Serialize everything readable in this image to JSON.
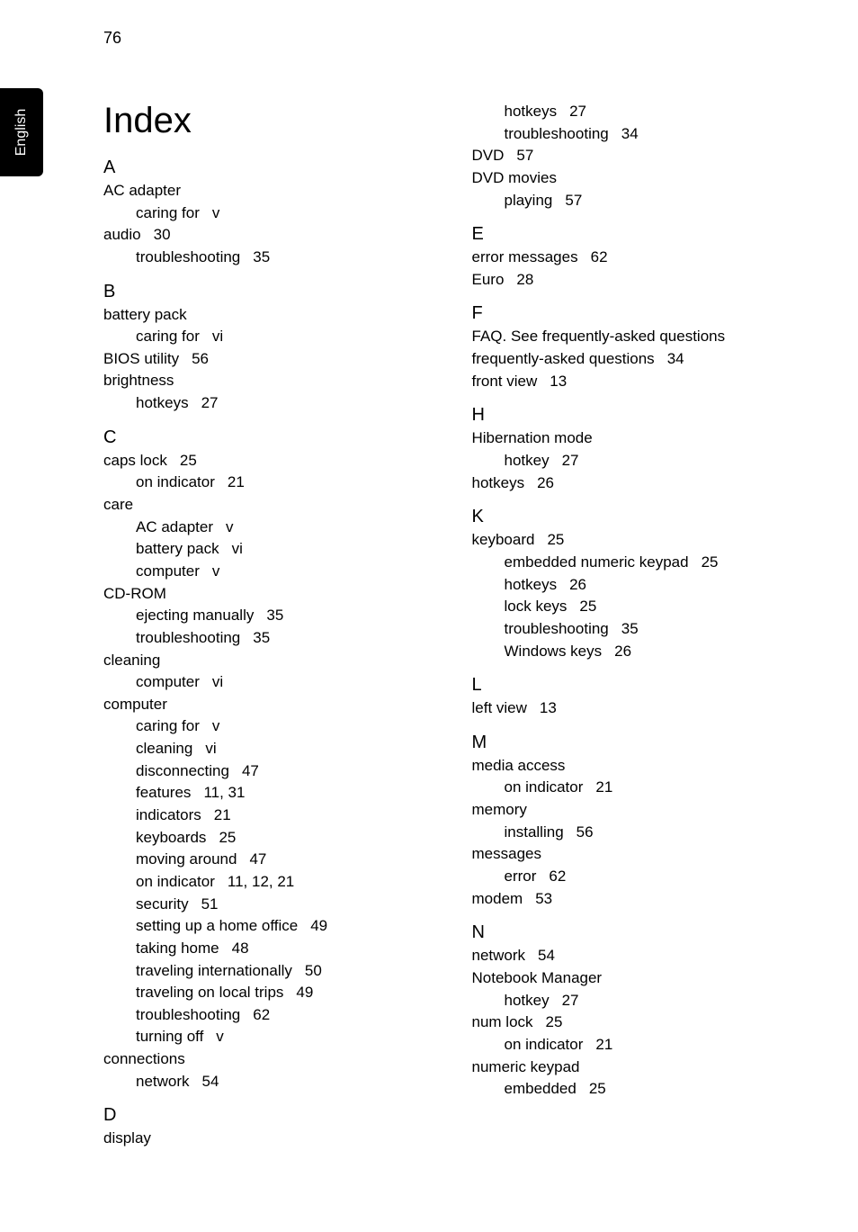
{
  "page_number": "76",
  "side_tab_label": "English",
  "title": "Index",
  "colors": {
    "background": "#ffffff",
    "text": "#000000",
    "tab_bg": "#000000",
    "tab_text": "#ffffff"
  },
  "left_column": [
    {
      "type": "letter",
      "text": "A"
    },
    {
      "type": "entry",
      "text": "AC adapter"
    },
    {
      "type": "sub",
      "label": "caring for",
      "pages": "v"
    },
    {
      "type": "entry",
      "label": "audio",
      "pages": "30"
    },
    {
      "type": "sub",
      "label": "troubleshooting",
      "pages": "35"
    },
    {
      "type": "letter",
      "text": "B"
    },
    {
      "type": "entry",
      "text": "battery pack"
    },
    {
      "type": "sub",
      "label": "caring for",
      "pages": "vi"
    },
    {
      "type": "entry",
      "label": "BIOS utility",
      "pages": "56"
    },
    {
      "type": "entry",
      "text": "brightness"
    },
    {
      "type": "sub",
      "label": "hotkeys",
      "pages": "27"
    },
    {
      "type": "letter",
      "text": "C"
    },
    {
      "type": "entry",
      "label": "caps lock",
      "pages": "25"
    },
    {
      "type": "sub",
      "label": "on indicator",
      "pages": "21"
    },
    {
      "type": "entry",
      "text": "care"
    },
    {
      "type": "sub",
      "label": "AC adapter",
      "pages": "v"
    },
    {
      "type": "sub",
      "label": "battery pack",
      "pages": "vi"
    },
    {
      "type": "sub",
      "label": "computer",
      "pages": "v"
    },
    {
      "type": "entry",
      "text": "CD-ROM"
    },
    {
      "type": "sub",
      "label": "ejecting manually",
      "pages": "35"
    },
    {
      "type": "sub",
      "label": "troubleshooting",
      "pages": "35"
    },
    {
      "type": "entry",
      "text": "cleaning"
    },
    {
      "type": "sub",
      "label": "computer",
      "pages": "vi"
    },
    {
      "type": "entry",
      "text": "computer"
    },
    {
      "type": "sub",
      "label": "caring for",
      "pages": "v"
    },
    {
      "type": "sub",
      "label": "cleaning",
      "pages": "vi"
    },
    {
      "type": "sub",
      "label": "disconnecting",
      "pages": "47"
    },
    {
      "type": "sub",
      "label": "features",
      "pages": "11,    31"
    },
    {
      "type": "sub",
      "label": "indicators",
      "pages": "21"
    },
    {
      "type": "sub",
      "label": "keyboards",
      "pages": "25"
    },
    {
      "type": "sub",
      "label": "moving around",
      "pages": "47"
    },
    {
      "type": "sub",
      "label": "on indicator",
      "pages": "11,    12,    21"
    },
    {
      "type": "sub",
      "label": "security",
      "pages": "51"
    },
    {
      "type": "sub",
      "label": "setting up a home office",
      "pages": "49"
    },
    {
      "type": "sub",
      "label": "taking home",
      "pages": "48"
    },
    {
      "type": "sub",
      "label": "traveling internationally",
      "pages": "50"
    },
    {
      "type": "sub",
      "label": "traveling on local trips",
      "pages": "49"
    },
    {
      "type": "sub",
      "label": "troubleshooting",
      "pages": "62"
    },
    {
      "type": "sub",
      "label": "turning off",
      "pages": "v"
    },
    {
      "type": "entry",
      "text": "connections"
    },
    {
      "type": "sub",
      "label": "network",
      "pages": "54"
    },
    {
      "type": "letter",
      "text": "D"
    },
    {
      "type": "entry",
      "text": "display"
    }
  ],
  "right_column": [
    {
      "type": "sub",
      "label": "hotkeys",
      "pages": "27"
    },
    {
      "type": "sub",
      "label": "troubleshooting",
      "pages": "34"
    },
    {
      "type": "entry",
      "label": "DVD",
      "pages": "57"
    },
    {
      "type": "entry",
      "text": "DVD movies"
    },
    {
      "type": "sub",
      "label": "playing",
      "pages": "57"
    },
    {
      "type": "letter",
      "text": "E"
    },
    {
      "type": "entry",
      "label": "error messages",
      "pages": "62"
    },
    {
      "type": "entry",
      "label": "Euro",
      "pages": "28"
    },
    {
      "type": "letter",
      "text": "F"
    },
    {
      "type": "entry",
      "text": "FAQ. See frequently-asked questions"
    },
    {
      "type": "entry",
      "label": "frequently-asked questions",
      "pages": "34"
    },
    {
      "type": "entry",
      "label": "front view",
      "pages": "13"
    },
    {
      "type": "letter",
      "text": "H"
    },
    {
      "type": "entry",
      "text": "Hibernation mode"
    },
    {
      "type": "sub",
      "label": "hotkey",
      "pages": "27"
    },
    {
      "type": "entry",
      "label": "hotkeys",
      "pages": "26"
    },
    {
      "type": "letter",
      "text": "K"
    },
    {
      "type": "entry",
      "label": "keyboard",
      "pages": "25"
    },
    {
      "type": "sub",
      "label": "embedded numeric keypad",
      "pages": "25"
    },
    {
      "type": "sub",
      "label": "hotkeys",
      "pages": "26"
    },
    {
      "type": "sub",
      "label": "lock keys",
      "pages": "25"
    },
    {
      "type": "sub",
      "label": "troubleshooting",
      "pages": "35"
    },
    {
      "type": "sub",
      "label": "Windows keys",
      "pages": "26"
    },
    {
      "type": "letter",
      "text": "L"
    },
    {
      "type": "entry",
      "label": "left view",
      "pages": "13"
    },
    {
      "type": "letter",
      "text": "M"
    },
    {
      "type": "entry",
      "text": "media access"
    },
    {
      "type": "sub",
      "label": "on indicator",
      "pages": "21"
    },
    {
      "type": "entry",
      "text": "memory"
    },
    {
      "type": "sub",
      "label": "installing",
      "pages": "56"
    },
    {
      "type": "entry",
      "text": "messages"
    },
    {
      "type": "sub",
      "label": "error",
      "pages": "62"
    },
    {
      "type": "entry",
      "label": "modem",
      "pages": "53"
    },
    {
      "type": "letter",
      "text": "N"
    },
    {
      "type": "entry",
      "label": "network",
      "pages": "54"
    },
    {
      "type": "entry",
      "text": "Notebook Manager"
    },
    {
      "type": "sub",
      "label": "hotkey",
      "pages": "27"
    },
    {
      "type": "entry",
      "label": "num lock",
      "pages": "25"
    },
    {
      "type": "sub",
      "label": "on indicator",
      "pages": "21"
    },
    {
      "type": "entry",
      "text": "numeric keypad"
    },
    {
      "type": "sub",
      "label": "embedded",
      "pages": "25"
    }
  ]
}
